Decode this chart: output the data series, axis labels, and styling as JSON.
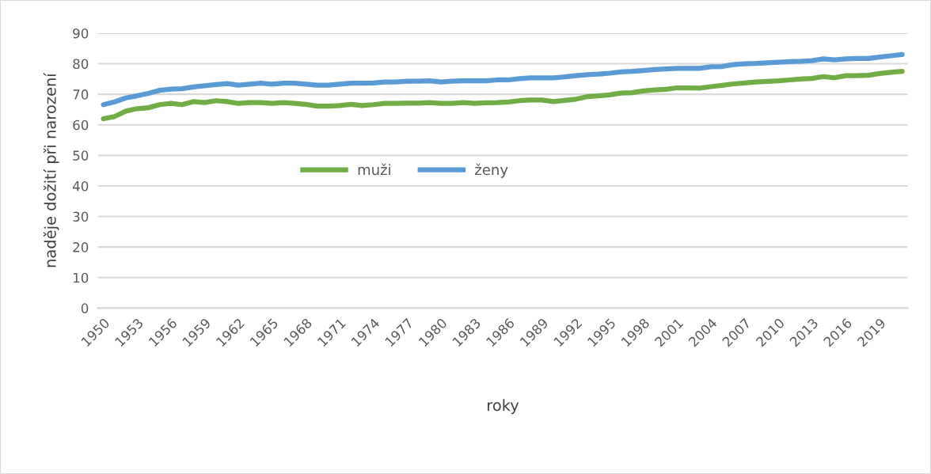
{
  "chart_data": {
    "type": "line",
    "xlabel": "roky",
    "ylabel": "naděje dožití při narození",
    "categories": [
      "1950",
      null,
      null,
      "1953",
      null,
      null,
      "1956",
      null,
      null,
      "1959",
      null,
      null,
      "1962",
      null,
      null,
      "1965",
      null,
      null,
      "1968",
      null,
      null,
      "1971",
      null,
      null,
      "1974",
      null,
      null,
      "1977",
      null,
      null,
      "1980",
      null,
      null,
      "1983",
      null,
      null,
      "1986",
      null,
      null,
      "1989",
      null,
      null,
      "1992",
      null,
      null,
      "1995",
      null,
      null,
      "1998",
      null,
      null,
      "2001",
      null,
      null,
      "2004",
      null,
      null,
      "2007",
      null,
      null,
      "2010",
      null,
      null,
      "2013",
      null,
      null,
      "2016",
      null,
      null,
      "2019",
      null,
      null
    ],
    "series": [
      {
        "name": "muži",
        "color": "#70ad47",
        "values": [
          62.0,
          62.7,
          64.5,
          65.3,
          65.6,
          66.6,
          67.0,
          66.6,
          67.6,
          67.3,
          67.9,
          67.6,
          67.0,
          67.3,
          67.3,
          67.0,
          67.3,
          67.0,
          66.7,
          66.1,
          66.1,
          66.3,
          66.7,
          66.3,
          66.6,
          67.0,
          67.0,
          67.1,
          67.1,
          67.3,
          67.0,
          67.0,
          67.3,
          67.0,
          67.2,
          67.3,
          67.5,
          67.9,
          68.1,
          68.1,
          67.6,
          68.0,
          68.4,
          69.2,
          69.5,
          69.8,
          70.4,
          70.5,
          71.1,
          71.4,
          71.6,
          72.1,
          72.1,
          72.0,
          72.5,
          72.9,
          73.4,
          73.7,
          74.0,
          74.2,
          74.4,
          74.7,
          75.0,
          75.2,
          75.8,
          75.4,
          76.1,
          76.1,
          76.2,
          76.8,
          77.2,
          77.5
        ]
      },
      {
        "name": "ženy",
        "color": "#5b9bd5",
        "values": [
          66.6,
          67.5,
          68.8,
          69.5,
          70.3,
          71.3,
          71.7,
          71.8,
          72.4,
          72.8,
          73.2,
          73.5,
          73.0,
          73.3,
          73.6,
          73.3,
          73.6,
          73.6,
          73.3,
          73.0,
          73.0,
          73.3,
          73.6,
          73.6,
          73.7,
          74.0,
          74.0,
          74.3,
          74.3,
          74.4,
          74.0,
          74.3,
          74.4,
          74.4,
          74.4,
          74.7,
          74.7,
          75.1,
          75.4,
          75.4,
          75.4,
          75.7,
          76.1,
          76.4,
          76.6,
          76.9,
          77.3,
          77.5,
          77.8,
          78.1,
          78.3,
          78.5,
          78.5,
          78.5,
          79.0,
          79.1,
          79.7,
          80.0,
          80.1,
          80.3,
          80.5,
          80.7,
          80.8,
          81.0,
          81.6,
          81.3,
          81.6,
          81.7,
          81.7,
          82.2,
          82.6,
          83.0
        ]
      }
    ],
    "ylim": [
      0,
      90
    ],
    "yticks": [
      0,
      10,
      20,
      30,
      40,
      50,
      60,
      70,
      80,
      90
    ],
    "grid": "y",
    "legend": "center",
    "marker": "none",
    "line_style": "solid"
  }
}
